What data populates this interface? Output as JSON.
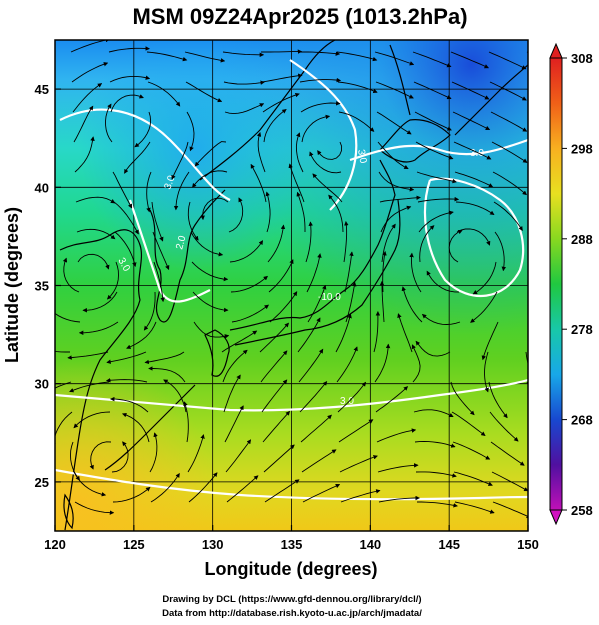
{
  "title": "MSM 09Z24Apr2025 (1013.2hPa)",
  "xlabel": "Longitude (degrees)",
  "ylabel": "Latitude  (degrees)",
  "x_ticks": [
    "120",
    "125",
    "130",
    "135",
    "140",
    "145",
    "150"
  ],
  "y_ticks": [
    "25",
    "30",
    "35",
    "40",
    "45"
  ],
  "colorbar": {
    "labels": [
      "308",
      "298",
      "288",
      "278",
      "268",
      "258"
    ],
    "colors": [
      "#d4145a",
      "#e0201e",
      "#f06018",
      "#f8a020",
      "#f8d020",
      "#d8e820",
      "#90d820",
      "#30c818",
      "#18c860",
      "#18c8b0",
      "#18b8e0",
      "#1888e8",
      "#1040d0",
      "#2018a0",
      "#701098",
      "#c010b0"
    ]
  },
  "contour_labels": [
    "3.0",
    "3.0",
    "2.0",
    "3.0",
    "3.0",
    "3.0",
    "-10.0"
  ],
  "credits": {
    "line1": "Drawing by DCL (https://www.gfd-dennou.org/library/dcl/)",
    "line2": "Data from http://database.rish.kyoto-u.ac.jp/arch/jmadata/"
  },
  "chart_data": {
    "type": "map",
    "variable": "temperature (K) with wind streamlines and white contours",
    "xlim": [
      120,
      150
    ],
    "ylim": [
      22.5,
      47.5
    ],
    "colorbar_range": [
      258,
      308
    ]
  }
}
